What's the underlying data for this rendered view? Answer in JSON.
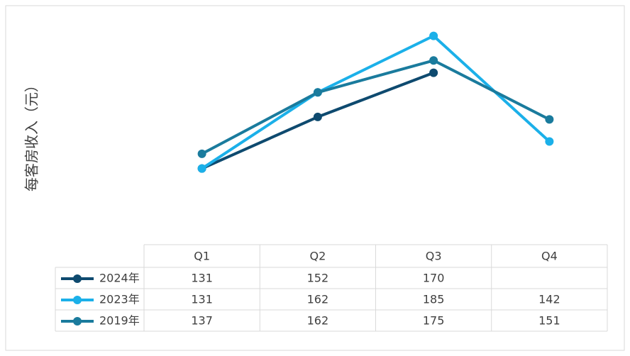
{
  "chart_data": {
    "type": "line",
    "y_label": "每客房收入（元）",
    "categories": [
      "Q1",
      "Q2",
      "Q3",
      "Q4"
    ],
    "series": [
      {
        "name": "2024年",
        "color": "#0e4a6f",
        "values": [
          131,
          152,
          170,
          null
        ]
      },
      {
        "name": "2023年",
        "color": "#1bb0e9",
        "values": [
          131,
          162,
          185,
          142
        ]
      },
      {
        "name": "2019年",
        "color": "#1a7b9d",
        "values": [
          137,
          162,
          175,
          151
        ]
      }
    ],
    "ylim": [
      100,
      195
    ],
    "data_table": true
  }
}
